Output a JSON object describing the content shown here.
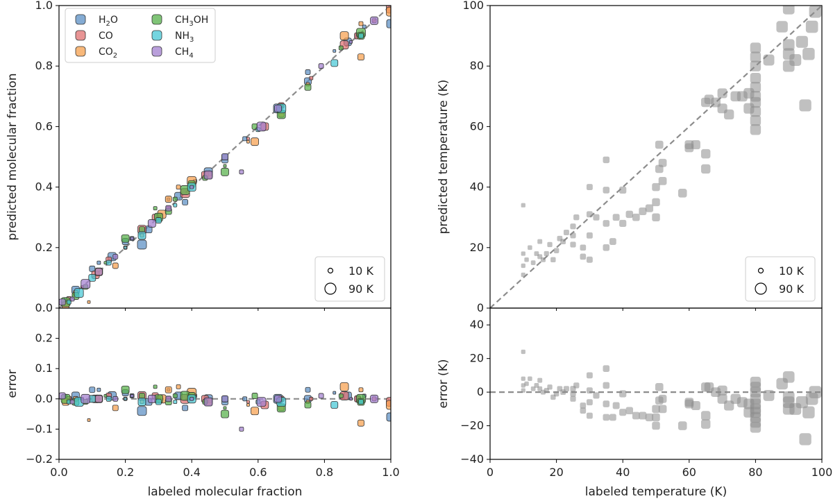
{
  "chart_data": [
    {
      "type": "scatter",
      "panel": "top-left",
      "xlabel": "",
      "ylabel": "predicted molecular fraction",
      "xlim": [
        0,
        1
      ],
      "ylim": [
        0,
        1
      ],
      "xticks": [
        "0.0",
        "0.2",
        "0.4",
        "0.6",
        "0.8",
        "1.0"
      ],
      "yticks": [
        "0.0",
        "0.2",
        "0.4",
        "0.6",
        "0.8",
        "1.0"
      ],
      "reference_line": "y = x (dashed gray)",
      "legend_placement": "top-left",
      "series": [
        {
          "name": "H2O",
          "label_main": "H",
          "label_sub": "2",
          "label_tail": "O",
          "color": "#5b8fc4",
          "points": [
            [
              0.02,
              0.03
            ],
            [
              0.05,
              0.06
            ],
            [
              0.1,
              0.13
            ],
            [
              0.12,
              0.15
            ],
            [
              0.16,
              0.17
            ],
            [
              0.2,
              0.22
            ],
            [
              0.22,
              0.23
            ],
            [
              0.25,
              0.21
            ],
            [
              0.27,
              0.26
            ],
            [
              0.3,
              0.3
            ],
            [
              0.33,
              0.36
            ],
            [
              0.36,
              0.37
            ],
            [
              0.38,
              0.35
            ],
            [
              0.41,
              0.42
            ],
            [
              0.45,
              0.45
            ],
            [
              0.5,
              0.49
            ],
            [
              0.56,
              0.56
            ],
            [
              0.66,
              0.66
            ],
            [
              0.75,
              0.75
            ],
            [
              0.75,
              0.78
            ],
            [
              0.83,
              0.85
            ],
            [
              0.87,
              0.88
            ],
            [
              0.9,
              0.9
            ],
            [
              0.92,
              0.93
            ],
            [
              1.0,
              0.94
            ]
          ]
        },
        {
          "name": "CO",
          "label_main": "CO",
          "label_sub": "",
          "label_tail": "",
          "color": "#e07070",
          "points": [
            [
              0.03,
              0.03
            ],
            [
              0.07,
              0.07
            ],
            [
              0.11,
              0.11
            ],
            [
              0.15,
              0.16
            ],
            [
              0.2,
              0.2
            ],
            [
              0.25,
              0.26
            ],
            [
              0.29,
              0.3
            ],
            [
              0.33,
              0.33
            ],
            [
              0.38,
              0.38
            ],
            [
              0.44,
              0.44
            ],
            [
              0.5,
              0.5
            ],
            [
              0.57,
              0.56
            ],
            [
              0.62,
              0.6
            ],
            [
              0.67,
              0.67
            ],
            [
              0.76,
              0.76
            ],
            [
              0.86,
              0.87
            ],
            [
              0.9,
              0.9
            ],
            [
              0.95,
              0.95
            ],
            [
              1.0,
              0.99
            ]
          ]
        },
        {
          "name": "CO2",
          "label_main": "CO",
          "label_sub": "2",
          "label_tail": "",
          "color": "#f6a04d",
          "points": [
            [
              0.02,
              0.01
            ],
            [
              0.05,
              0.05
            ],
            [
              0.09,
              0.02
            ],
            [
              0.12,
              0.12
            ],
            [
              0.17,
              0.14
            ],
            [
              0.25,
              0.24
            ],
            [
              0.31,
              0.31
            ],
            [
              0.33,
              0.36
            ],
            [
              0.36,
              0.4
            ],
            [
              0.4,
              0.42
            ],
            [
              0.45,
              0.44
            ],
            [
              0.5,
              0.5
            ],
            [
              0.57,
              0.55
            ],
            [
              0.59,
              0.55
            ],
            [
              0.67,
              0.64
            ],
            [
              0.75,
              0.74
            ],
            [
              0.86,
              0.9
            ],
            [
              0.91,
              0.83
            ],
            [
              0.91,
              0.94
            ],
            [
              1.0,
              0.98
            ]
          ]
        },
        {
          "name": "CH3OH",
          "label_main": "CH",
          "label_sub": "3",
          "label_tail": "OH",
          "color": "#56b04a",
          "points": [
            [
              0.02,
              0.02
            ],
            [
              0.05,
              0.04
            ],
            [
              0.08,
              0.07
            ],
            [
              0.14,
              0.15
            ],
            [
              0.2,
              0.23
            ],
            [
              0.25,
              0.26
            ],
            [
              0.29,
              0.33
            ],
            [
              0.3,
              0.3
            ],
            [
              0.33,
              0.32
            ],
            [
              0.35,
              0.36
            ],
            [
              0.38,
              0.39
            ],
            [
              0.4,
              0.41
            ],
            [
              0.44,
              0.43
            ],
            [
              0.5,
              0.47
            ],
            [
              0.5,
              0.45
            ],
            [
              0.59,
              0.6
            ],
            [
              0.67,
              0.67
            ],
            [
              0.67,
              0.64
            ],
            [
              0.75,
              0.73
            ],
            [
              0.85,
              0.86
            ],
            [
              0.91,
              0.91
            ],
            [
              0.91,
              0.9
            ]
          ]
        },
        {
          "name": "NH3",
          "label_main": "NH",
          "label_sub": "3",
          "label_tail": "",
          "color": "#46c7d6",
          "points": [
            [
              0.03,
              0.02
            ],
            [
              0.06,
              0.05
            ],
            [
              0.1,
              0.1
            ],
            [
              0.15,
              0.15
            ],
            [
              0.2,
              0.2
            ],
            [
              0.25,
              0.24
            ],
            [
              0.3,
              0.29
            ],
            [
              0.35,
              0.34
            ],
            [
              0.4,
              0.4
            ],
            [
              0.5,
              0.5
            ],
            [
              0.6,
              0.59
            ],
            [
              0.67,
              0.66
            ],
            [
              0.83,
              0.81
            ],
            [
              0.91,
              0.9
            ]
          ]
        },
        {
          "name": "CH4",
          "label_main": "CH",
          "label_sub": "4",
          "label_tail": "",
          "color": "#a27fcf",
          "points": [
            [
              0.01,
              0.02
            ],
            [
              0.04,
              0.03
            ],
            [
              0.08,
              0.08
            ],
            [
              0.12,
              0.12
            ],
            [
              0.17,
              0.17
            ],
            [
              0.22,
              0.23
            ],
            [
              0.28,
              0.28
            ],
            [
              0.33,
              0.33
            ],
            [
              0.4,
              0.4
            ],
            [
              0.45,
              0.44
            ],
            [
              0.5,
              0.5
            ],
            [
              0.55,
              0.45
            ],
            [
              0.61,
              0.6
            ],
            [
              0.66,
              0.66
            ],
            [
              0.79,
              0.8
            ],
            [
              0.88,
              0.88
            ],
            [
              0.95,
              0.95
            ]
          ]
        }
      ],
      "size_legend": [
        {
          "label": "10 K"
        },
        {
          "label": "90 K"
        }
      ]
    },
    {
      "type": "scatter",
      "panel": "bottom-left",
      "xlabel": "labeled molecular fraction",
      "ylabel": "error",
      "xlim": [
        0,
        1
      ],
      "ylim": [
        -0.2,
        0.3
      ],
      "xticks": [
        "0.0",
        "0.2",
        "0.4",
        "0.6",
        "0.8",
        "1.0"
      ],
      "yticks": [
        "−0.2",
        "−0.1",
        "0.0",
        "0.1",
        "0.2"
      ],
      "reference_line": "y = 0 (dashed gray)",
      "note": "errors = predicted - labeled for the same points as top-left panel"
    },
    {
      "type": "scatter",
      "panel": "top-right",
      "xlabel": "",
      "ylabel": "predicted temperature (K)",
      "xlim": [
        0,
        100
      ],
      "ylim": [
        0,
        100
      ],
      "xticks": [
        "0",
        "20",
        "40",
        "60",
        "80",
        "100"
      ],
      "yticks": [
        "0",
        "20",
        "40",
        "60",
        "80",
        "100"
      ],
      "reference_line": "y = x (dashed gray)",
      "color": "#8c8c8c",
      "points": [
        [
          10,
          14
        ],
        [
          10,
          11
        ],
        [
          10,
          18
        ],
        [
          10,
          34
        ],
        [
          11,
          16
        ],
        [
          12,
          20
        ],
        [
          13,
          15
        ],
        [
          14,
          18
        ],
        [
          15,
          17
        ],
        [
          15,
          22
        ],
        [
          16,
          16
        ],
        [
          17,
          18
        ],
        [
          18,
          21
        ],
        [
          19,
          16
        ],
        [
          20,
          19
        ],
        [
          21,
          23
        ],
        [
          22,
          22
        ],
        [
          23,
          25
        ],
        [
          25,
          24
        ],
        [
          25,
          27
        ],
        [
          25,
          21
        ],
        [
          26,
          30
        ],
        [
          28,
          20
        ],
        [
          28,
          17
        ],
        [
          30,
          24
        ],
        [
          30,
          16
        ],
        [
          30,
          31
        ],
        [
          30,
          40
        ],
        [
          32,
          30
        ],
        [
          35,
          20
        ],
        [
          35,
          28
        ],
        [
          35,
          39
        ],
        [
          35,
          49
        ],
        [
          37,
          22
        ],
        [
          38,
          30
        ],
        [
          40,
          28
        ],
        [
          40,
          39
        ],
        [
          42,
          31
        ],
        [
          44,
          30
        ],
        [
          46,
          32
        ],
        [
          48,
          33
        ],
        [
          50,
          35
        ],
        [
          50,
          40
        ],
        [
          50,
          30
        ],
        [
          51,
          46
        ],
        [
          51,
          54
        ],
        [
          52,
          42
        ],
        [
          52,
          48
        ],
        [
          58,
          38
        ],
        [
          60,
          53
        ],
        [
          60,
          54
        ],
        [
          62,
          54
        ],
        [
          65,
          51
        ],
        [
          65,
          46
        ],
        [
          65,
          68
        ],
        [
          66,
          69
        ],
        [
          68,
          68
        ],
        [
          70,
          66
        ],
        [
          70,
          71
        ],
        [
          72,
          64
        ],
        [
          74,
          70
        ],
        [
          76,
          70
        ],
        [
          78,
          66
        ],
        [
          78,
          71
        ],
        [
          80,
          59
        ],
        [
          80,
          62
        ],
        [
          80,
          65
        ],
        [
          80,
          68
        ],
        [
          80,
          70
        ],
        [
          80,
          73
        ],
        [
          80,
          76
        ],
        [
          80,
          80
        ],
        [
          80,
          83
        ],
        [
          80,
          86
        ],
        [
          84,
          82
        ],
        [
          88,
          93
        ],
        [
          90,
          80
        ],
        [
          90,
          84
        ],
        [
          90,
          87
        ],
        [
          90,
          99
        ],
        [
          92,
          82
        ],
        [
          94,
          88
        ],
        [
          95,
          67
        ],
        [
          96,
          84
        ],
        [
          97,
          93
        ],
        [
          98,
          98
        ]
      ]
    },
    {
      "type": "scatter",
      "panel": "bottom-right",
      "xlabel": "labeled temperature (K)",
      "ylabel": "error (K)",
      "xlim": [
        0,
        100
      ],
      "ylim": [
        -40,
        50
      ],
      "xticks": [
        "0",
        "20",
        "40",
        "60",
        "80",
        "100"
      ],
      "yticks": [
        "−40",
        "−20",
        "0",
        "20",
        "40"
      ],
      "reference_line": "y = 0 (dashed gray)",
      "note": "errors = predicted - labeled for the same points as top-right panel"
    }
  ]
}
